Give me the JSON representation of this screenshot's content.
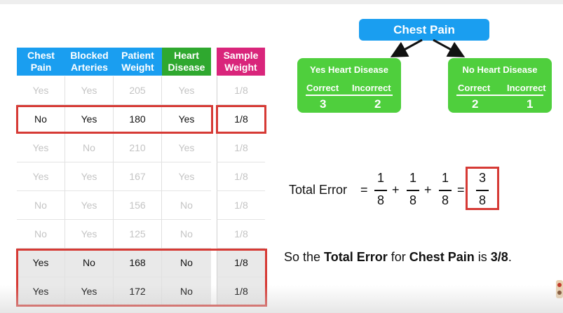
{
  "table": {
    "headers": [
      {
        "key": "chest_pain",
        "line1": "Chest",
        "line2": "Pain",
        "color": "#1a9ef0"
      },
      {
        "key": "blocked_arteries",
        "line1": "Blocked",
        "line2": "Arteries",
        "color": "#1a9ef0"
      },
      {
        "key": "patient_weight",
        "line1": "Patient",
        "line2": "Weight",
        "color": "#1a9ef0"
      },
      {
        "key": "heart_disease",
        "line1": "Heart",
        "line2": "Disease",
        "color": "#2fa82f"
      },
      {
        "key": "sample_weight",
        "line1": "Sample",
        "line2": "Weight",
        "color": "#d9257b"
      }
    ],
    "rows": [
      {
        "cells": [
          "Yes",
          "Yes",
          "205",
          "Yes",
          "1/8"
        ],
        "highlighted": false
      },
      {
        "cells": [
          "No",
          "Yes",
          "180",
          "Yes",
          "1/8"
        ],
        "highlighted": true
      },
      {
        "cells": [
          "Yes",
          "No",
          "210",
          "Yes",
          "1/8"
        ],
        "highlighted": false
      },
      {
        "cells": [
          "Yes",
          "Yes",
          "167",
          "Yes",
          "1/8"
        ],
        "highlighted": false
      },
      {
        "cells": [
          "No",
          "Yes",
          "156",
          "No",
          "1/8"
        ],
        "highlighted": false
      },
      {
        "cells": [
          "No",
          "Yes",
          "125",
          "No",
          "1/8"
        ],
        "highlighted": false
      },
      {
        "cells": [
          "Yes",
          "No",
          "168",
          "No",
          "1/8"
        ],
        "highlighted": true
      },
      {
        "cells": [
          "Yes",
          "Yes",
          "172",
          "No",
          "1/8"
        ],
        "highlighted": true
      }
    ]
  },
  "tree": {
    "root_label": "Chest Pain",
    "left_leaf": {
      "title": "Yes Heart Disease",
      "correct_label": "Correct",
      "incorrect_label": "Incorrect",
      "correct": "3",
      "incorrect": "2"
    },
    "right_leaf": {
      "title": "No Heart Disease",
      "correct_label": "Correct",
      "incorrect_label": "Incorrect",
      "correct": "2",
      "incorrect": "1"
    }
  },
  "formula": {
    "label": "Total Error",
    "equals": "=",
    "plus": "+",
    "terms": [
      {
        "numerator": "1",
        "denominator": "8"
      },
      {
        "numerator": "1",
        "denominator": "8"
      },
      {
        "numerator": "1",
        "denominator": "8"
      }
    ],
    "result": {
      "numerator": "3",
      "denominator": "8"
    }
  },
  "conclusion": {
    "prefix": "So the ",
    "term": "Total Error",
    "middle": " for ",
    "feature": "Chest Pain",
    "verb": " is ",
    "value": "3/8",
    "suffix": "."
  },
  "colors": {
    "blue": "#1a9ef0",
    "green": "#4fcf3d",
    "heart_disease_header": "#2fa82f",
    "sample_weight_header": "#d9257b",
    "highlight_red": "#d63a35"
  }
}
